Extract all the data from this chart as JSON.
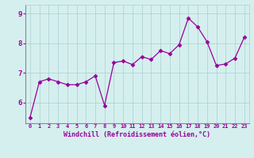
{
  "x": [
    0,
    1,
    2,
    3,
    4,
    5,
    6,
    7,
    8,
    9,
    10,
    11,
    12,
    13,
    14,
    15,
    16,
    17,
    18,
    19,
    20,
    21,
    22,
    23
  ],
  "y": [
    5.5,
    6.7,
    6.8,
    6.7,
    6.6,
    6.6,
    6.7,
    6.9,
    5.9,
    7.35,
    7.4,
    7.28,
    7.55,
    7.45,
    7.75,
    7.65,
    7.95,
    8.85,
    8.55,
    8.05,
    7.25,
    7.3,
    7.5,
    8.2
  ],
  "line_color": "#990099",
  "marker": "D",
  "marker_size": 2.5,
  "bg_color": "#d5efef",
  "grid_color": "#b0d4d4",
  "xlabel": "Windchill (Refroidissement éolien,°C)",
  "xlabel_color": "#990099",
  "tick_color": "#990099",
  "ylim": [
    5.3,
    9.3
  ],
  "xlim": [
    -0.5,
    23.5
  ],
  "yticks": [
    6,
    7,
    8,
    9
  ],
  "xticks": [
    0,
    1,
    2,
    3,
    4,
    5,
    6,
    7,
    8,
    9,
    10,
    11,
    12,
    13,
    14,
    15,
    16,
    17,
    18,
    19,
    20,
    21,
    22,
    23
  ],
  "xtick_labels": [
    "0",
    "1",
    "2",
    "3",
    "4",
    "5",
    "6",
    "7",
    "8",
    "9",
    "10",
    "11",
    "12",
    "13",
    "14",
    "15",
    "16",
    "17",
    "18",
    "19",
    "20",
    "21",
    "22",
    "23"
  ]
}
